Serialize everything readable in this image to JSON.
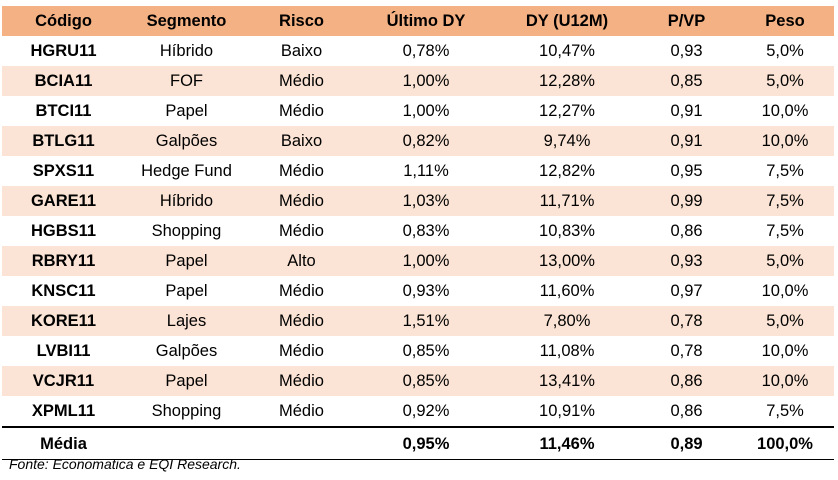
{
  "table": {
    "headers": [
      "Código",
      "Segmento",
      "Risco",
      "Último DY",
      "DY (U12M)",
      "P/VP",
      "Peso"
    ],
    "rows": [
      [
        "HGRU11",
        "Híbrido",
        "Baixo",
        "0,78%",
        "10,47%",
        "0,93",
        "5,0%"
      ],
      [
        "BCIA11",
        "FOF",
        "Médio",
        "1,00%",
        "12,28%",
        "0,85",
        "5,0%"
      ],
      [
        "BTCI11",
        "Papel",
        "Médio",
        "1,00%",
        "12,27%",
        "0,91",
        "10,0%"
      ],
      [
        "BTLG11",
        "Galpões",
        "Baixo",
        "0,82%",
        "9,74%",
        "0,91",
        "10,0%"
      ],
      [
        "SPXS11",
        "Hedge Fund",
        "Médio",
        "1,11%",
        "12,82%",
        "0,95",
        "7,5%"
      ],
      [
        "GARE11",
        "Híbrido",
        "Médio",
        "1,03%",
        "11,71%",
        "0,99",
        "7,5%"
      ],
      [
        "HGBS11",
        "Shopping",
        "Médio",
        "0,83%",
        "10,83%",
        "0,86",
        "7,5%"
      ],
      [
        "RBRY11",
        "Papel",
        "Alto",
        "1,00%",
        "13,00%",
        "0,93",
        "5,0%"
      ],
      [
        "KNSC11",
        "Papel",
        "Médio",
        "0,93%",
        "11,60%",
        "0,97",
        "10,0%"
      ],
      [
        "KORE11",
        "Lajes",
        "Médio",
        "1,51%",
        "7,80%",
        "0,78",
        "5,0%"
      ],
      [
        "LVBI11",
        "Galpões",
        "Médio",
        "0,85%",
        "11,08%",
        "0,78",
        "10,0%"
      ],
      [
        "VCJR11",
        "Papel",
        "Médio",
        "0,85%",
        "13,41%",
        "0,86",
        "10,0%"
      ],
      [
        "XPML11",
        "Shopping",
        "Médio",
        "0,92%",
        "10,91%",
        "0,86",
        "7,5%"
      ]
    ],
    "footer": [
      "Média",
      "",
      "",
      "0,95%",
      "11,46%",
      "0,89",
      "100,0%"
    ]
  },
  "source": "Fonte: Economatica e EQI Research.",
  "colors": {
    "header_bg": "#f4b183",
    "alt_row_bg": "#fbe4d5"
  }
}
